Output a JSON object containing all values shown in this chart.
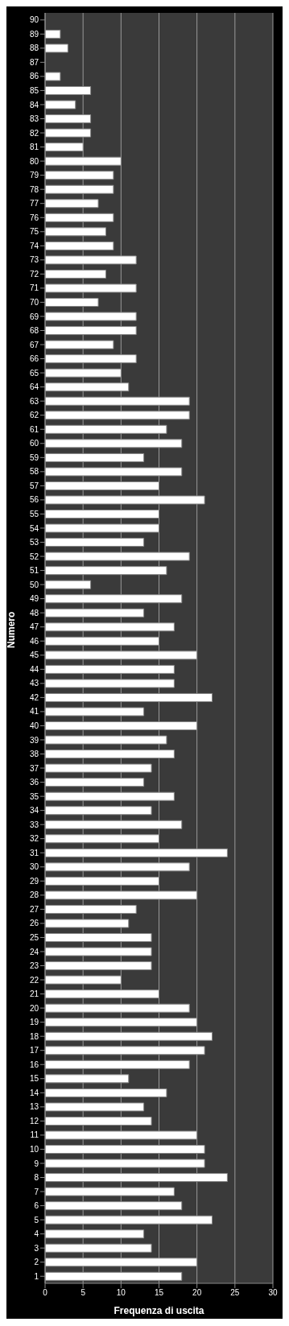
{
  "chart_data": {
    "type": "bar",
    "orientation": "horizontal",
    "xlabel": "Frequenza di uscita",
    "ylabel": "Numero",
    "categories": [
      "90",
      "89",
      "88",
      "87",
      "86",
      "85",
      "84",
      "83",
      "82",
      "81",
      "80",
      "79",
      "78",
      "77",
      "76",
      "75",
      "74",
      "73",
      "72",
      "71",
      "70",
      "69",
      "68",
      "67",
      "66",
      "65",
      "64",
      "63",
      "62",
      "61",
      "60",
      "59",
      "58",
      "57",
      "56",
      "55",
      "54",
      "53",
      "52",
      "51",
      "50",
      "49",
      "48",
      "47",
      "46",
      "45",
      "44",
      "43",
      "42",
      "41",
      "40",
      "39",
      "38",
      "37",
      "36",
      "35",
      "34",
      "33",
      "32",
      "31",
      "30",
      "29",
      "28",
      "27",
      "26",
      "25",
      "24",
      "23",
      "22",
      "21",
      "20",
      "19",
      "18",
      "17",
      "16",
      "15",
      "14",
      "13",
      "12",
      "11",
      "10",
      "9",
      "8",
      "7",
      "6",
      "5",
      "4",
      "3",
      "2",
      "1"
    ],
    "values": [
      0,
      2,
      3,
      0,
      2,
      6,
      4,
      6,
      6,
      5,
      10,
      9,
      9,
      7,
      9,
      8,
      9,
      12,
      8,
      12,
      7,
      12,
      12,
      9,
      12,
      10,
      11,
      19,
      19,
      16,
      18,
      13,
      18,
      15,
      21,
      15,
      15,
      13,
      19,
      16,
      6,
      18,
      13,
      17,
      15,
      20,
      17,
      17,
      22,
      13,
      20,
      16,
      17,
      14,
      13,
      17,
      14,
      18,
      15,
      24,
      19,
      15,
      20,
      12,
      11,
      14,
      14,
      14,
      10,
      15,
      19,
      20,
      22,
      21,
      19,
      11,
      16,
      13,
      14,
      20,
      21,
      21,
      24,
      17,
      18,
      22,
      13,
      14,
      20,
      18
    ],
    "color": "#ffffff",
    "xlim": [
      0,
      30
    ],
    "xticks": [
      0,
      5,
      10,
      15,
      20,
      25,
      30
    ],
    "grid": "x"
  }
}
